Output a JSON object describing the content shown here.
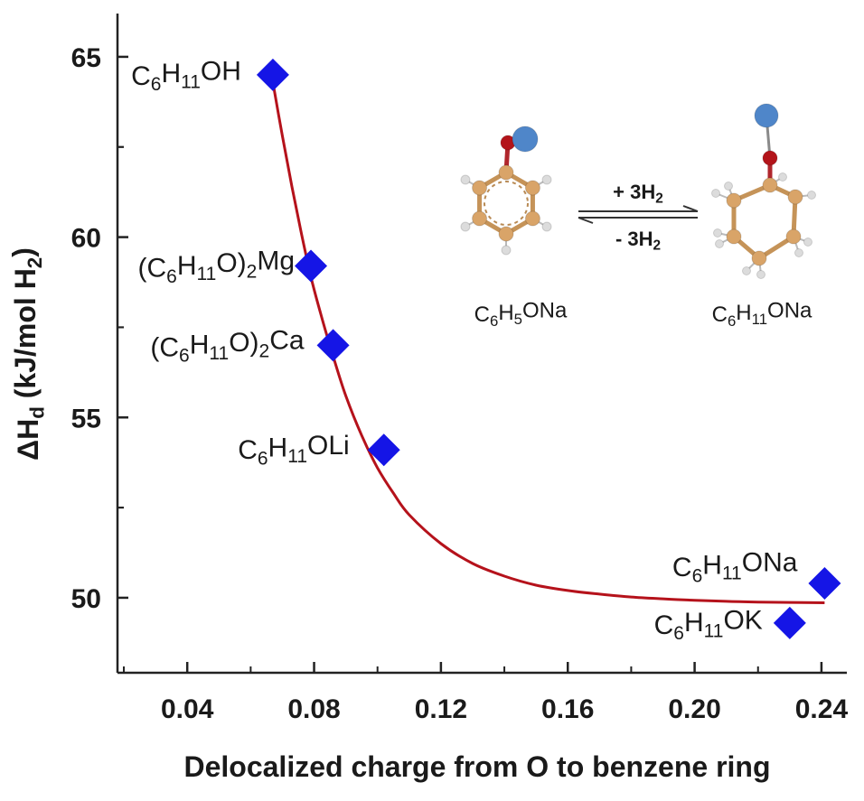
{
  "chart_data": {
    "type": "scatter",
    "title": "",
    "xlabel": "Delocalized charge from O to benzene ring",
    "ylabel": {
      "main": "ΔH",
      "sub": "d",
      "unit": " (kJ/mol H",
      "unit_sub": "2",
      "close": ")"
    },
    "xlim": [
      0.018,
      0.248
    ],
    "ylim": [
      47.92,
      66.2
    ],
    "xticks": [
      "0.04",
      "0.08",
      "0.12",
      "0.16",
      "0.20",
      "0.24"
    ],
    "yticks": [
      "50",
      "55",
      "60",
      "65"
    ],
    "grid": false,
    "marker_color": "#1515e6",
    "curve_color": "#b5121b",
    "points": [
      {
        "x": 0.067,
        "y": 64.5,
        "label": {
          "parts": [
            [
              "C",
              ""
            ],
            [
              "6",
              "sub"
            ],
            [
              "H",
              ""
            ],
            [
              "11",
              "sub"
            ],
            [
              "OH",
              ""
            ]
          ]
        }
      },
      {
        "x": 0.079,
        "y": 59.2,
        "label": {
          "parts": [
            [
              "(C",
              ""
            ],
            [
              "6",
              "sub"
            ],
            [
              "H",
              ""
            ],
            [
              "11",
              "sub"
            ],
            [
              "O)",
              ""
            ],
            [
              "2",
              "sub"
            ],
            [
              "Mg",
              ""
            ]
          ]
        }
      },
      {
        "x": 0.086,
        "y": 57.0,
        "label": {
          "parts": [
            [
              "(C",
              ""
            ],
            [
              "6",
              "sub"
            ],
            [
              "H",
              ""
            ],
            [
              "11",
              "sub"
            ],
            [
              "O)",
              ""
            ],
            [
              "2",
              "sub"
            ],
            [
              "Ca",
              ""
            ]
          ]
        }
      },
      {
        "x": 0.102,
        "y": 54.1,
        "label": {
          "parts": [
            [
              "C",
              ""
            ],
            [
              "6",
              "sub"
            ],
            [
              "H",
              ""
            ],
            [
              "11",
              "sub"
            ],
            [
              "OLi",
              ""
            ]
          ]
        }
      },
      {
        "x": 0.241,
        "y": 50.4,
        "label": {
          "parts": [
            [
              "C",
              ""
            ],
            [
              "6",
              "sub"
            ],
            [
              "H",
              ""
            ],
            [
              "11",
              "sub"
            ],
            [
              "ONa",
              ""
            ]
          ]
        }
      },
      {
        "x": 0.23,
        "y": 49.3,
        "label": {
          "parts": [
            [
              "C",
              ""
            ],
            [
              "6",
              "sub"
            ],
            [
              "H",
              ""
            ],
            [
              "11",
              "sub"
            ],
            [
              "OK",
              ""
            ]
          ]
        }
      }
    ],
    "fit_curve": {
      "x": [
        0.067,
        0.07,
        0.073,
        0.076,
        0.079,
        0.082,
        0.086,
        0.09,
        0.095,
        0.1,
        0.105,
        0.11,
        0.12,
        0.13,
        0.14,
        0.15,
        0.16,
        0.17,
        0.18,
        0.19,
        0.2,
        0.21,
        0.22,
        0.23,
        0.241
      ],
      "y": [
        64.3,
        62.8,
        61.4,
        60.1,
        58.9,
        57.9,
        56.7,
        55.6,
        54.5,
        53.6,
        52.9,
        52.3,
        51.5,
        50.95,
        50.6,
        50.35,
        50.2,
        50.1,
        50.02,
        49.97,
        49.93,
        49.9,
        49.88,
        49.87,
        49.86
      ]
    }
  },
  "inset": {
    "arrow_forward": {
      "parts": [
        [
          "+ 3H",
          ""
        ],
        [
          "2",
          "sub"
        ]
      ]
    },
    "arrow_reverse": {
      "parts": [
        [
          "- 3H",
          ""
        ],
        [
          "2",
          "sub"
        ]
      ]
    },
    "left_molecule": {
      "parts": [
        [
          "C",
          ""
        ],
        [
          "6",
          "sub"
        ],
        [
          "H",
          ""
        ],
        [
          "5",
          "sub"
        ],
        [
          "ONa",
          ""
        ]
      ]
    },
    "right_molecule": {
      "parts": [
        [
          "C",
          ""
        ],
        [
          "6",
          "sub"
        ],
        [
          "H",
          ""
        ],
        [
          "11",
          "sub"
        ],
        [
          "ONa",
          ""
        ]
      ]
    },
    "carbon_color": "#d9a468",
    "oxygen_color": "#b3141a",
    "sodium_color": "#4f86c9",
    "hydrogen_color": "#dcdcdc"
  }
}
